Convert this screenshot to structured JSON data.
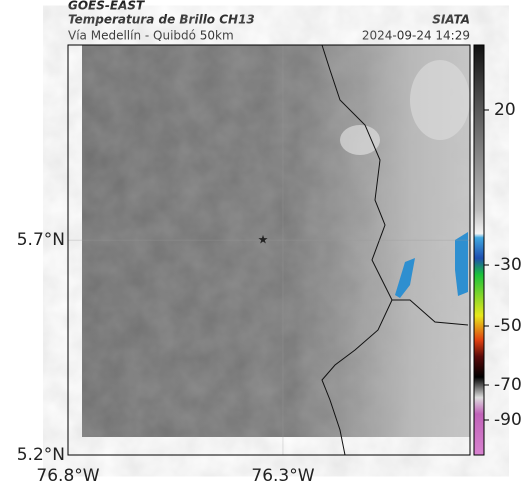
{
  "header": {
    "source": "GOES-EAST",
    "title": "Temperatura de Brillo CH13",
    "subtitle": "Vía Medellín - Quibdó 50km",
    "agency": "SIATA",
    "timestamp": "2024-09-24 14:29"
  },
  "map": {
    "xlim": [
      -76.8,
      -75.865
    ],
    "ylim": [
      5.2,
      6.154
    ],
    "xticks": [
      {
        "value": -76.8,
        "label": "76.8°W"
      },
      {
        "value": -76.3,
        "label": "76.3°W"
      }
    ],
    "yticks": [
      {
        "value": 5.2,
        "label": "5.2°N"
      },
      {
        "value": 5.7,
        "label": "5.7°N"
      }
    ],
    "grid": true
  },
  "colorbar": {
    "ticks": [
      20,
      -30,
      -50,
      -70,
      -90
    ]
  }
}
